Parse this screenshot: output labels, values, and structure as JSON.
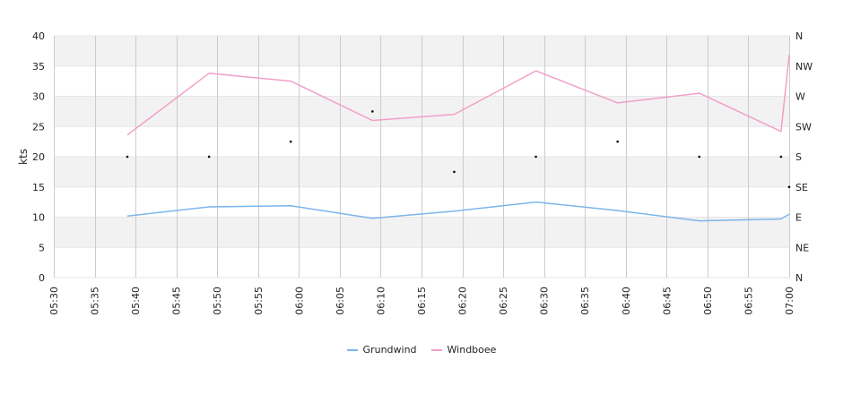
{
  "chart_data": {
    "type": "line",
    "ylabel": "kts",
    "ylim": [
      0,
      40
    ],
    "y_ticks": [
      "0",
      "5",
      "10",
      "15",
      "20",
      "25",
      "30",
      "35",
      "40"
    ],
    "right_axis_ticks": [
      "N",
      "NE",
      "E",
      "SE",
      "S",
      "SW",
      "W",
      "NW",
      "N"
    ],
    "x_ticks": [
      "05:30",
      "05:35",
      "05:40",
      "05:45",
      "05:50",
      "05:55",
      "06:00",
      "06:05",
      "06:10",
      "06:15",
      "06:20",
      "06:25",
      "06:30",
      "06:35",
      "06:40",
      "06:45",
      "06:50",
      "06:55",
      "07:00"
    ],
    "x": [
      "05:39",
      "05:49",
      "05:59",
      "06:09",
      "06:19",
      "06:29",
      "06:39",
      "06:49",
      "06:59",
      "07:00"
    ],
    "series": [
      {
        "name": "Grundwind",
        "color": "#7cb5ec",
        "values": [
          10.2,
          11.7,
          11.9,
          9.8,
          11.0,
          12.5,
          11.1,
          9.4,
          9.7,
          10.5
        ]
      },
      {
        "name": "Windboee",
        "color": "#f29fc8",
        "values": [
          23.6,
          33.8,
          32.5,
          26.0,
          27.0,
          34.2,
          28.9,
          30.5,
          24.2,
          36.8
        ]
      }
    ],
    "direction_markers": {
      "x": [
        "05:39",
        "05:49",
        "05:59",
        "06:09",
        "06:19",
        "06:29",
        "06:39",
        "06:49",
        "06:59",
        "07:00"
      ],
      "values_deg": [
        180,
        180,
        202.5,
        247.5,
        157.5,
        180,
        202.5,
        180,
        180,
        135
      ]
    },
    "grid": true,
    "legend": "bottom-center"
  }
}
